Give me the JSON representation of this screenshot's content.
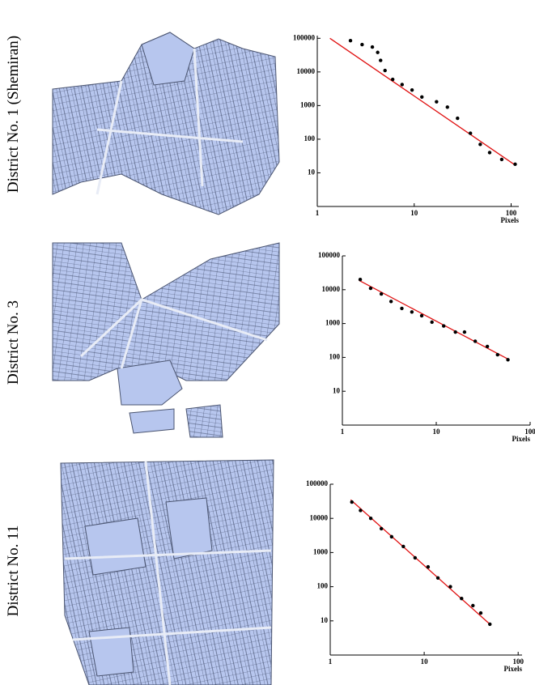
{
  "chart_data": [
    {
      "type": "scatter",
      "title": "District No. 1 (Shemiran)",
      "xlabel": "Pixels",
      "xlog": true,
      "ylog": true,
      "xlim": [
        1,
        120
      ],
      "ylim": [
        1,
        120000
      ],
      "xticks": [
        1,
        10,
        100
      ],
      "yticks": [
        10,
        100,
        1000,
        10000,
        100000
      ],
      "series": [
        {
          "color": "#000000",
          "x": [
            2.2,
            2.9,
            3.7,
            4.2,
            4.5,
            5.0,
            6.0,
            7.5,
            9.5,
            12,
            17,
            22,
            28,
            38,
            48,
            60,
            80,
            110
          ],
          "values": [
            85000,
            65000,
            55000,
            38000,
            22000,
            11000,
            6000,
            4200,
            2900,
            1800,
            1300,
            900,
            420,
            150,
            70,
            40,
            25,
            18
          ]
        }
      ],
      "fit": {
        "color": "#e01010",
        "x": [
          1.35,
          110
        ],
        "values": [
          100000,
          17
        ]
      }
    },
    {
      "type": "scatter",
      "title": "District No. 3",
      "xlabel": "Pixels",
      "xlog": true,
      "ylog": true,
      "xlim": [
        1,
        100
      ],
      "ylim": [
        1,
        100000
      ],
      "xticks": [
        1,
        10,
        100
      ],
      "yticks": [
        10,
        100,
        1000,
        10000,
        100000
      ],
      "series": [
        {
          "color": "#000000",
          "x": [
            1.55,
            2,
            2.6,
            3.3,
            4.3,
            5.5,
            7,
            9,
            12,
            16,
            20,
            26,
            35,
            45,
            58
          ],
          "values": [
            20000,
            11000,
            7500,
            4500,
            2800,
            2200,
            1700,
            1100,
            850,
            560,
            560,
            300,
            210,
            120,
            85
          ]
        }
      ],
      "fit": {
        "color": "#e01010",
        "x": [
          1.5,
          60
        ],
        "values": [
          19000,
          85
        ]
      }
    },
    {
      "type": "scatter",
      "title": "District No. 11",
      "xlabel": "Pixels",
      "xlog": true,
      "ylog": true,
      "xlim": [
        1,
        110
      ],
      "ylim": [
        1,
        100000
      ],
      "xticks": [
        1,
        10,
        100
      ],
      "yticks": [
        10,
        100,
        1000,
        10000,
        100000
      ],
      "series": [
        {
          "color": "#000000",
          "x": [
            1.7,
            2.1,
            2.7,
            3.5,
            4.5,
            6,
            8,
            11,
            14,
            19,
            25,
            33,
            40,
            50
          ],
          "values": [
            30000,
            17000,
            10000,
            5000,
            2900,
            1500,
            700,
            380,
            180,
            100,
            45,
            28,
            17,
            8
          ]
        }
      ],
      "fit": {
        "color": "#e01010",
        "x": [
          1.65,
          50
        ],
        "values": [
          35000,
          8
        ]
      }
    }
  ]
}
